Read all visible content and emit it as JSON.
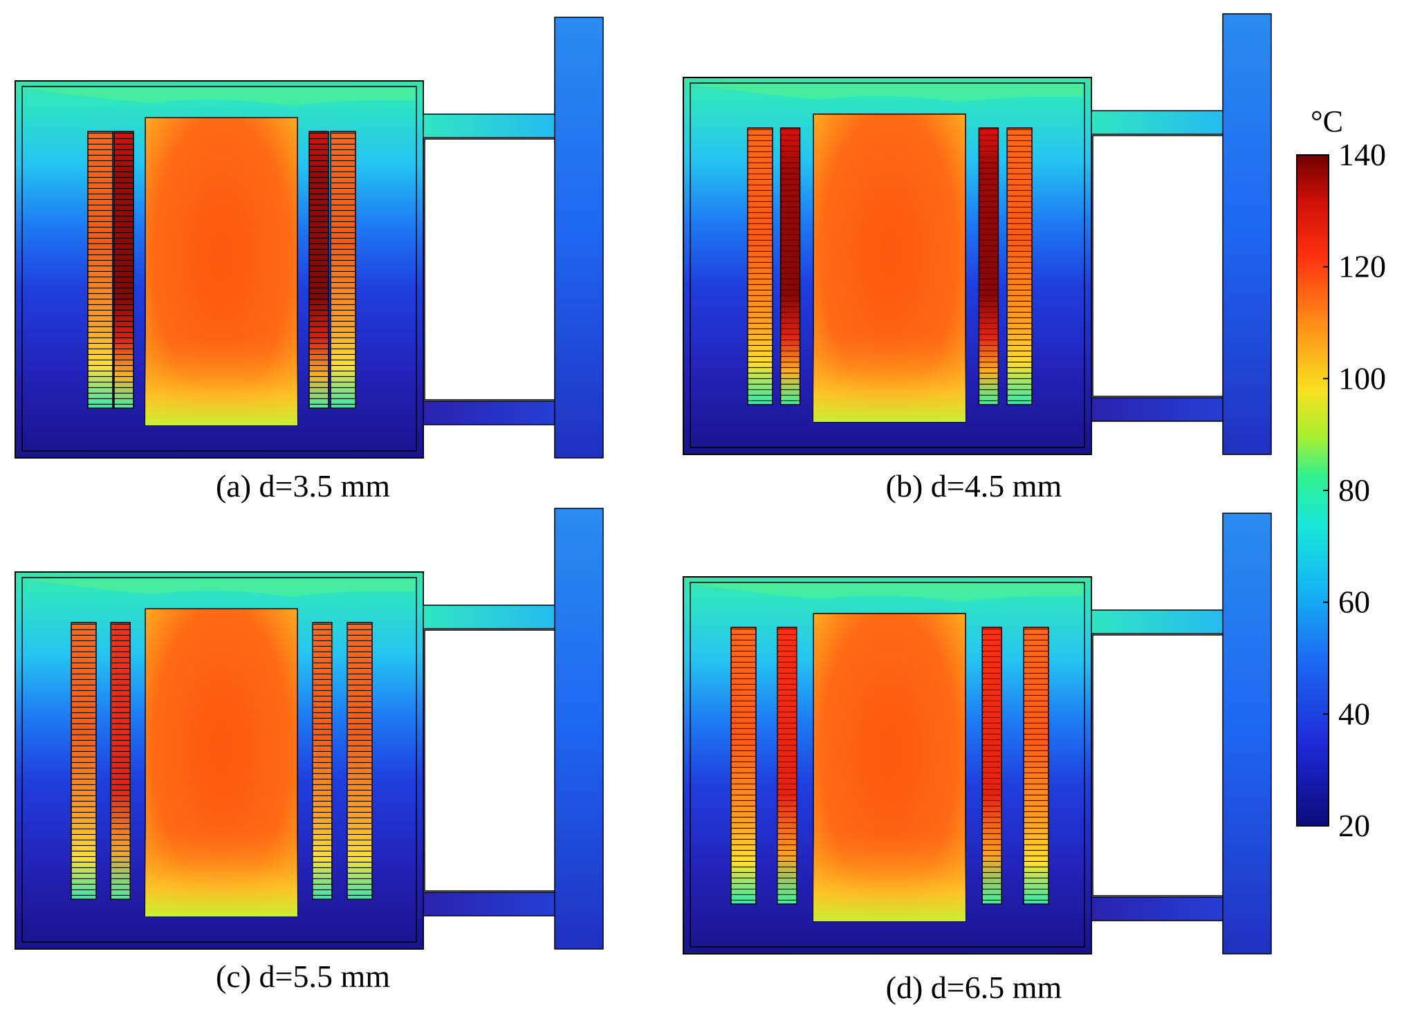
{
  "panels": [
    {
      "id": "a",
      "caption": "(a) d=3.5 mm",
      "spacing_mm": 3.5
    },
    {
      "id": "b",
      "caption": "(b) d=4.5 mm",
      "spacing_mm": 4.5
    },
    {
      "id": "c",
      "caption": "(c) d=5.5 mm",
      "spacing_mm": 5.5
    },
    {
      "id": "d",
      "caption": "(d) d=6.5 mm",
      "spacing_mm": 6.5
    }
  ],
  "colorbar": {
    "unit": "°C",
    "min": 20,
    "max": 140,
    "ticks": [
      "140",
      "120",
      "100",
      "80",
      "60",
      "40",
      "20"
    ],
    "colormap": [
      "#00008f",
      "#0000ff",
      "#00b0ff",
      "#00ffff",
      "#80ff80",
      "#ffff00",
      "#ff8000",
      "#ff0000",
      "#800000"
    ]
  },
  "colors": {
    "tank_bottom": "#1a1aa8",
    "tank_mid": "#1e5cf0",
    "tank_upper": "#23c6f0",
    "tank_top": "#2fe6b4",
    "core": "#ff5a14",
    "core_base": "#e6ee22",
    "outline": "#000000"
  }
}
